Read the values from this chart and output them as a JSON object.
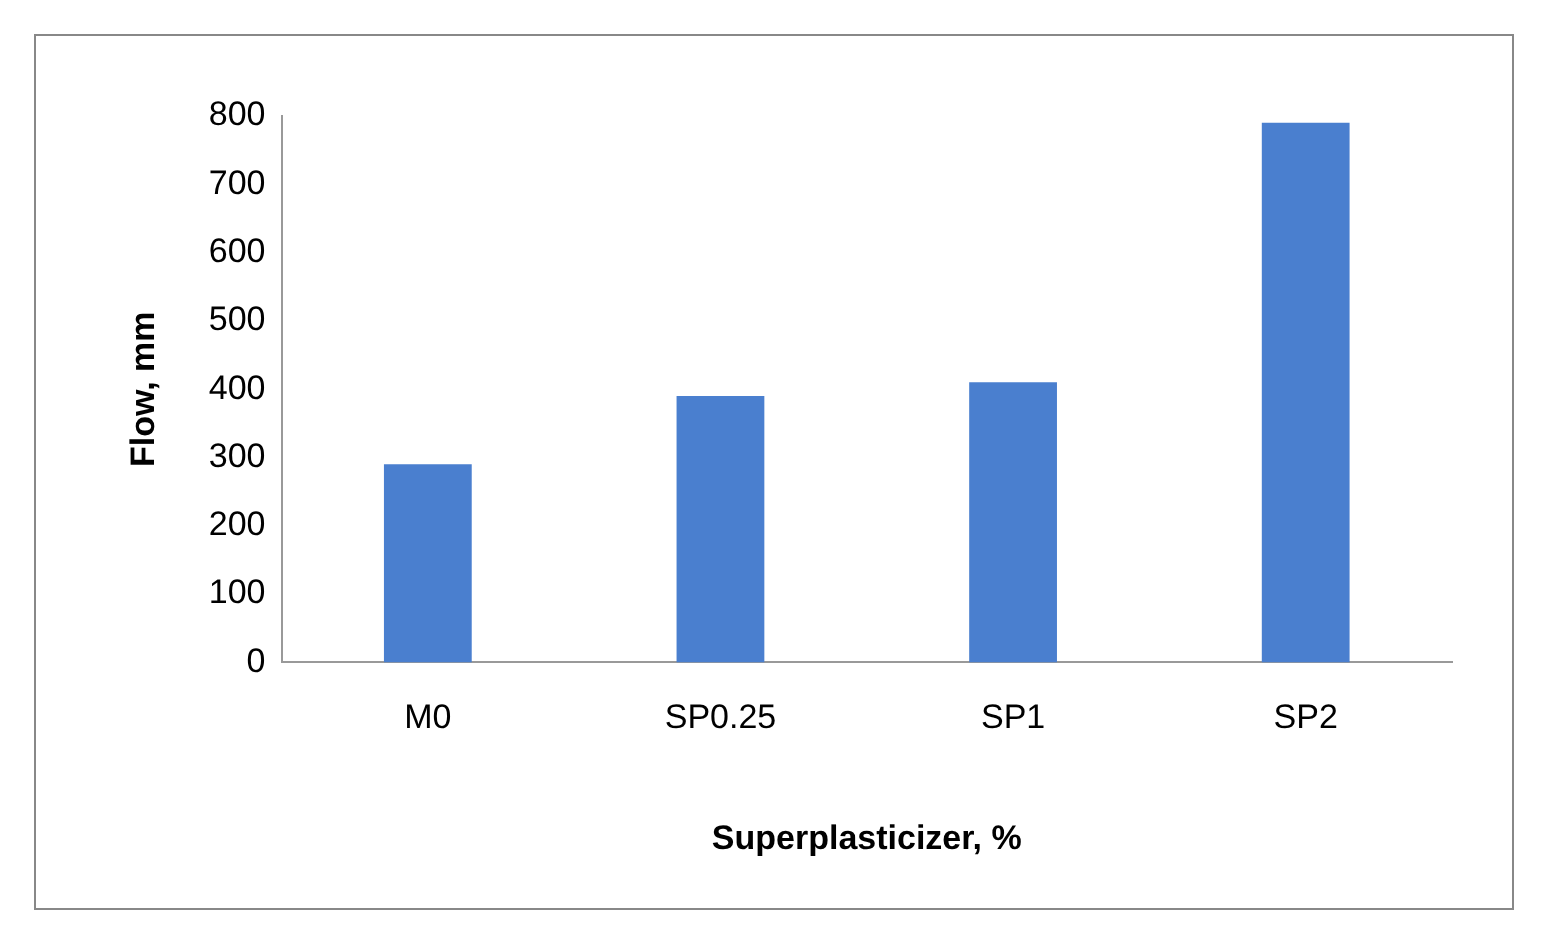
{
  "chart_data": {
    "type": "bar",
    "xlabel": "Superplasticizer, %",
    "ylabel": "Flow, mm",
    "categories": [
      "M0",
      "SP0.25",
      "SP1",
      "SP2"
    ],
    "values": [
      290,
      390,
      410,
      790
    ],
    "color": "#4a7fcf",
    "ylim": [
      0,
      800
    ],
    "yticks": [
      0,
      100,
      200,
      300,
      400,
      500,
      600,
      700,
      800
    ],
    "grid": false,
    "legend": false
  }
}
